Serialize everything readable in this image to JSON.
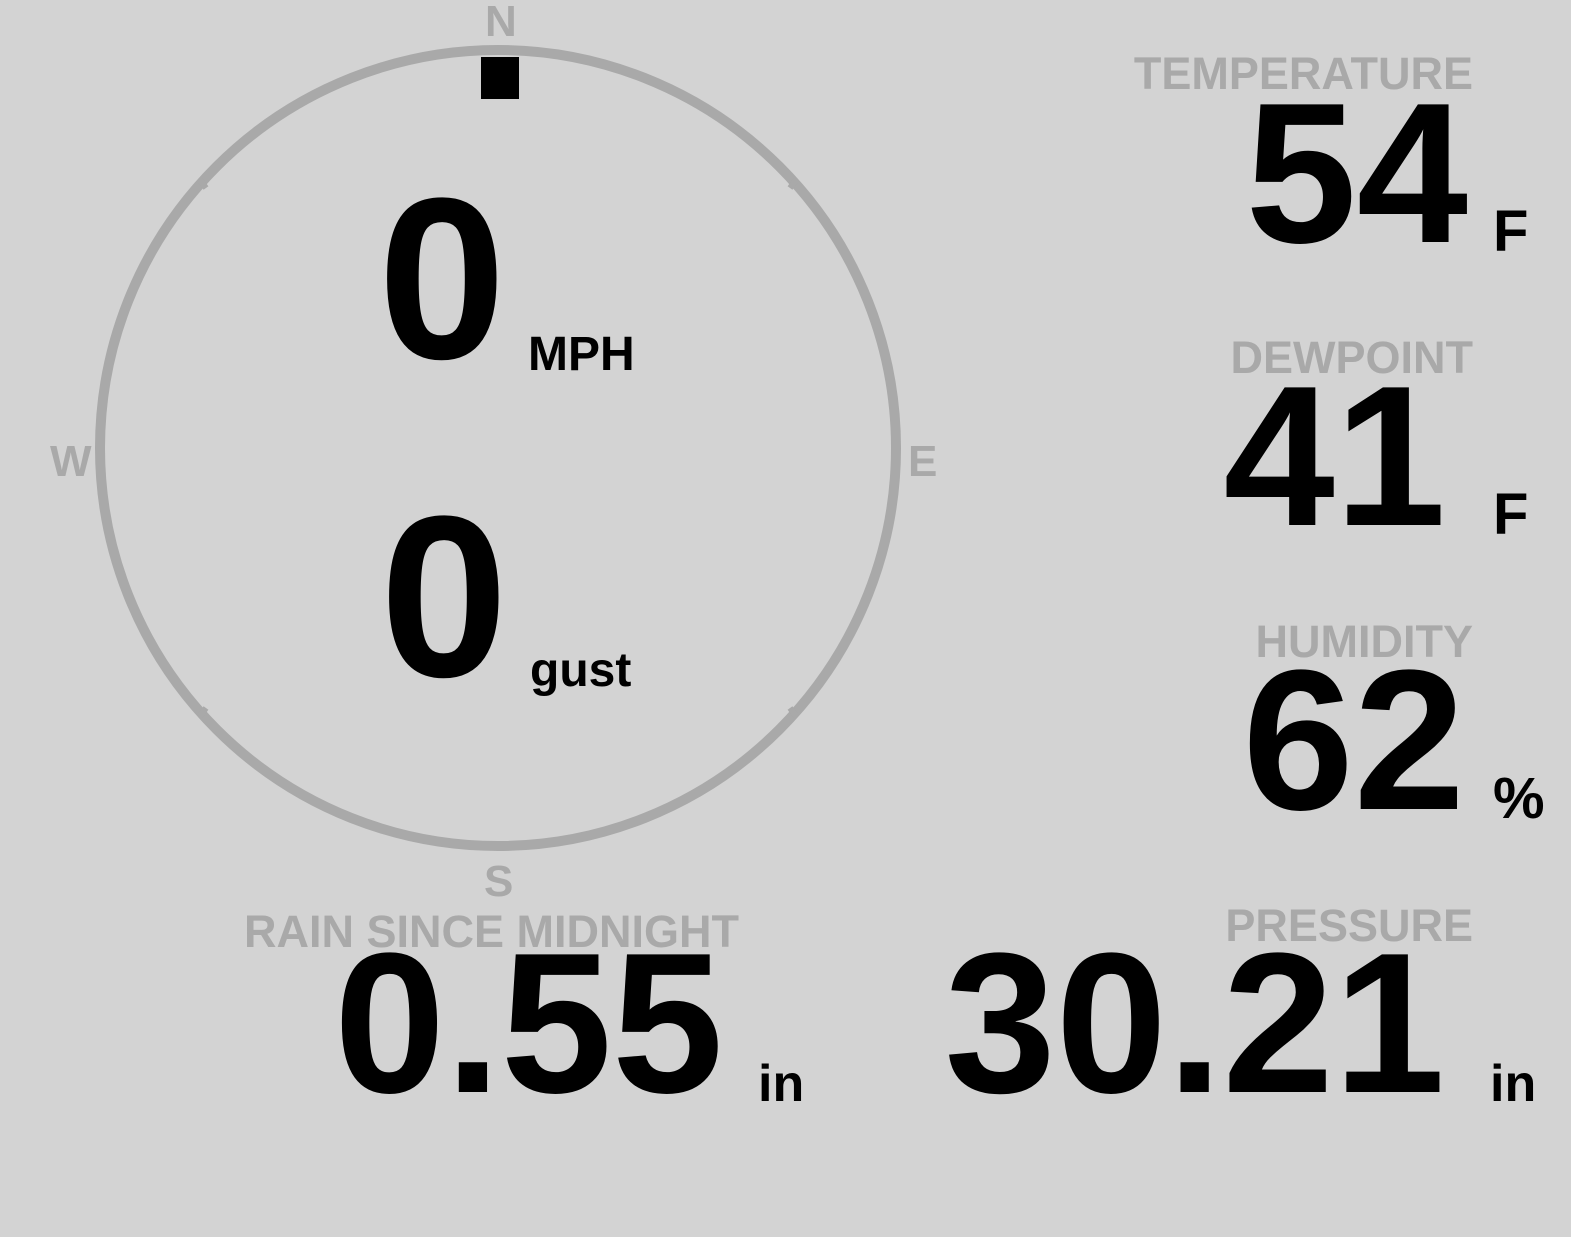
{
  "colors": {
    "background": "#d3d3d3",
    "label": "#a9a9a9",
    "value": "#000000",
    "compass_ring": "#a9a9a9"
  },
  "compass": {
    "north": "N",
    "east": "E",
    "south": "S",
    "west": "W",
    "direction_degrees": 0
  },
  "wind": {
    "speed": "0",
    "speed_unit": "MPH",
    "gust": "0",
    "gust_unit": "gust"
  },
  "temperature": {
    "label": "TEMPERATURE",
    "value": "54",
    "unit": "F"
  },
  "dewpoint": {
    "label": "DEWPOINT",
    "value": "41",
    "unit": "F"
  },
  "humidity": {
    "label": "HUMIDITY",
    "value": "62",
    "unit": "%"
  },
  "rain": {
    "label": "RAIN SINCE MIDNIGHT",
    "value": "0.55",
    "unit": "in"
  },
  "pressure": {
    "label": "PRESSURE",
    "value": "30.21",
    "unit": "in"
  }
}
